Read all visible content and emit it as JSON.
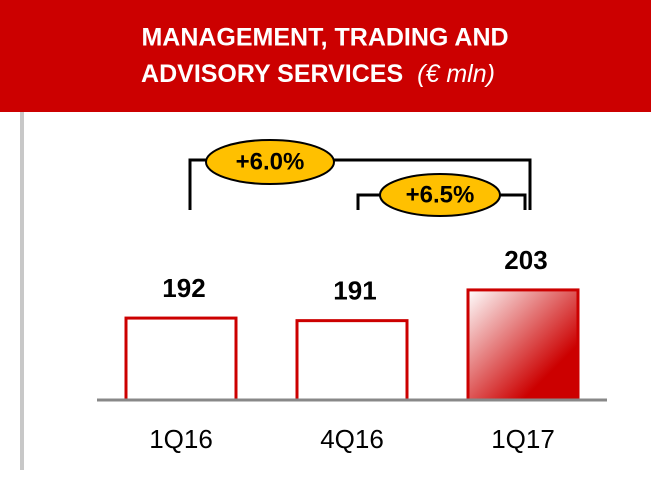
{
  "chart_data": {
    "type": "bar",
    "title": [
      "MANAGEMENT, TRADING AND",
      "ADVISORY SERVICES"
    ],
    "unit": "(€ mln)",
    "categories": [
      "1Q16",
      "4Q16",
      "1Q17"
    ],
    "values": [
      192,
      191,
      203
    ],
    "colors": [
      "#ffffff",
      "#ffffff",
      "#cc0000"
    ],
    "ylim": [
      160,
      210
    ],
    "annotations": [
      "+6.0%",
      "+6.5%"
    ]
  }
}
